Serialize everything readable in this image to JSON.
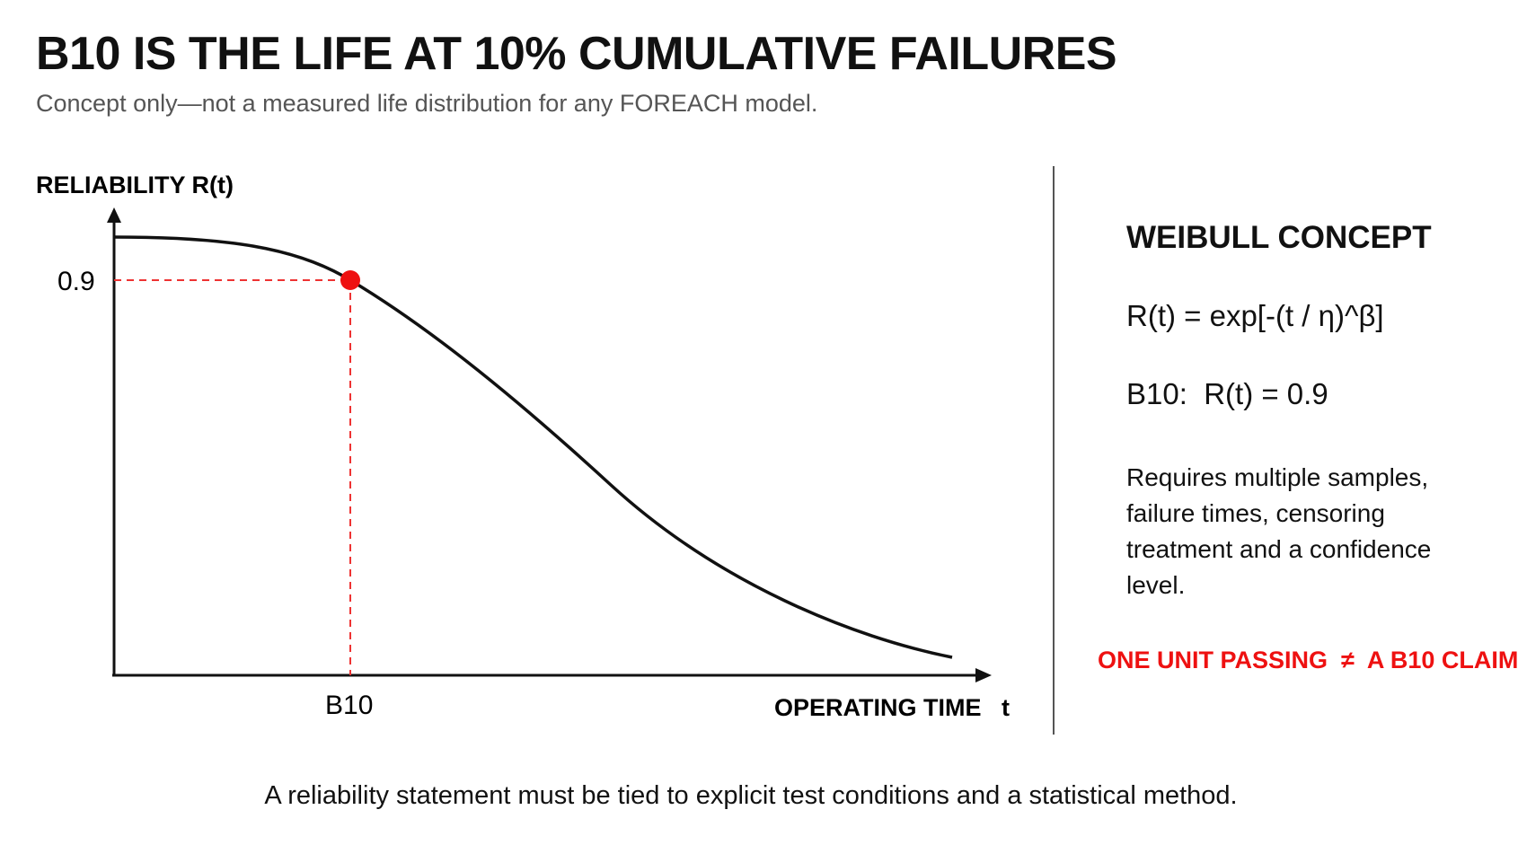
{
  "header": {
    "title": "B10 IS THE LIFE AT 10% CUMULATIVE FAILURES",
    "subtitle": "Concept only—not a measured life distribution for any FOREACH model."
  },
  "chart_data": {
    "type": "line",
    "ylabel": "RELIABILITY  R(t)",
    "xlabel": "OPERATING TIME   t",
    "marker": {
      "x_label": "B10",
      "y_label": "0.9",
      "y": 0.9
    },
    "curve": "Weibull reliability R(t) decreasing from ~1.0 toward 0",
    "colors": {
      "curve": "#111111",
      "marker": "#ee1111",
      "guide": "#ee3333"
    }
  },
  "panel": {
    "heading": "WEIBULL CONCEPT",
    "formula": "R(t) = exp[-(t / η)^β]",
    "b10": "B10:  R(t) = 0.9",
    "note": "Requires multiple samples, failure times, censoring treatment and a confidence level.",
    "warning": "ONE UNIT PASSING  ≠  A B10 CLAIM"
  },
  "footer": "A reliability statement must be tied to explicit test conditions and a statistical method."
}
